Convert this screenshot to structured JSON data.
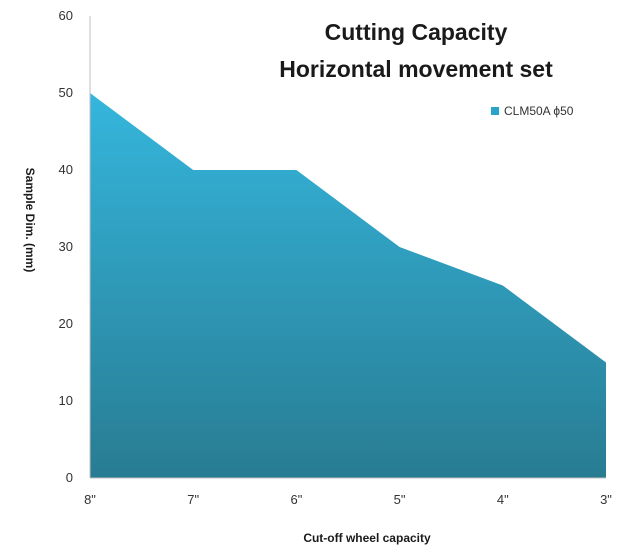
{
  "chart_data": {
    "type": "area",
    "title_lines": [
      "Cutting Capacity",
      "Horizontal movement set"
    ],
    "xlabel": "Cut-off wheel capacity",
    "ylabel": "Sample Dim. (mm)",
    "categories": [
      "8\"",
      "7\"",
      "6\"",
      "5\"",
      "4\"",
      "3\""
    ],
    "series": [
      {
        "name": "CLM50A ϕ50",
        "values": [
          50,
          40,
          40,
          30,
          25,
          15
        ]
      }
    ],
    "ylim": [
      0,
      60
    ],
    "yticks": [
      0,
      10,
      20,
      30,
      40,
      50,
      60
    ],
    "grid": false,
    "legend_position": "top-right",
    "colors": {
      "area_top": "#35b6dd",
      "area_bottom": "#287c92",
      "legend_swatch": "#2aa3c8",
      "axis": "#bfbfbf"
    }
  }
}
